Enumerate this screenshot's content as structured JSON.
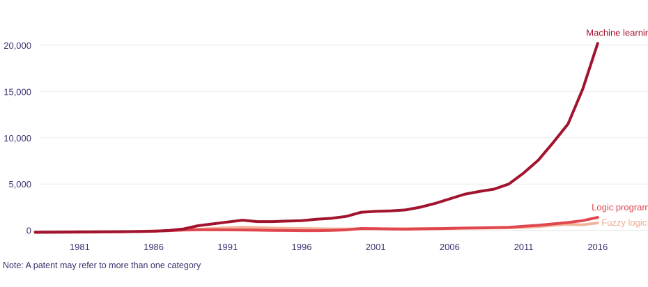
{
  "chart_data": {
    "type": "line",
    "title": "",
    "xlabel": "",
    "ylabel": "",
    "xlim": [
      1978.3,
      2019.4
    ],
    "ylim": [
      -250,
      21500
    ],
    "yticks": [
      0,
      5000,
      10000,
      15000,
      20000
    ],
    "ytick_labels": [
      "0",
      "5,000",
      "10,000",
      "15,000",
      "20,000"
    ],
    "xticks": [
      1981,
      1986,
      1991,
      1996,
      2001,
      2006,
      2011,
      2016
    ],
    "xtick_labels": [
      "1981",
      "1986",
      "1991",
      "1996",
      "2001",
      "2006",
      "2011",
      "2016"
    ],
    "grid": "horizontal",
    "legend": "direct labels at line ends",
    "x": [
      1978,
      1979,
      1980,
      1981,
      1982,
      1983,
      1984,
      1985,
      1986,
      1987,
      1988,
      1989,
      1990,
      1991,
      1992,
      1993,
      1994,
      1995,
      1996,
      1997,
      1998,
      1999,
      2000,
      2001,
      2002,
      2003,
      2004,
      2005,
      2006,
      2007,
      2008,
      2009,
      2010,
      2011,
      2012,
      2013,
      2014,
      2015,
      2016
    ],
    "series": [
      {
        "name": "Machine learning",
        "color": "#a1142e",
        "values": [
          -200,
          -190,
          -180,
          -170,
          -160,
          -160,
          -140,
          -130,
          -100,
          -20,
          150,
          500,
          700,
          900,
          1100,
          950,
          950,
          1000,
          1050,
          1200,
          1300,
          1500,
          1950,
          2050,
          2100,
          2200,
          2500,
          2900,
          3400,
          3900,
          4200,
          4450,
          5000,
          6200,
          7600,
          9500,
          11500,
          15300,
          20200
        ]
      },
      {
        "name": "Logic programming",
        "color": "#e0464e",
        "values": [
          -220,
          -210,
          -200,
          -190,
          -180,
          -170,
          -150,
          -120,
          -80,
          -30,
          30,
          60,
          60,
          50,
          40,
          20,
          0,
          -20,
          -30,
          -30,
          -10,
          50,
          200,
          180,
          150,
          130,
          160,
          180,
          210,
          250,
          270,
          290,
          320,
          450,
          550,
          700,
          850,
          1050,
          1400
        ]
      },
      {
        "name": "Fuzzy logic",
        "color": "#f0b49a",
        "values": [
          -220,
          -210,
          -200,
          -190,
          -180,
          -170,
          -150,
          -120,
          -80,
          -30,
          50,
          120,
          200,
          280,
          330,
          300,
          250,
          220,
          200,
          180,
          160,
          150,
          160,
          170,
          180,
          190,
          200,
          210,
          220,
          230,
          240,
          260,
          280,
          320,
          400,
          550,
          650,
          600,
          800
        ]
      }
    ],
    "note": "Note: A patent may refer to more than one category"
  }
}
